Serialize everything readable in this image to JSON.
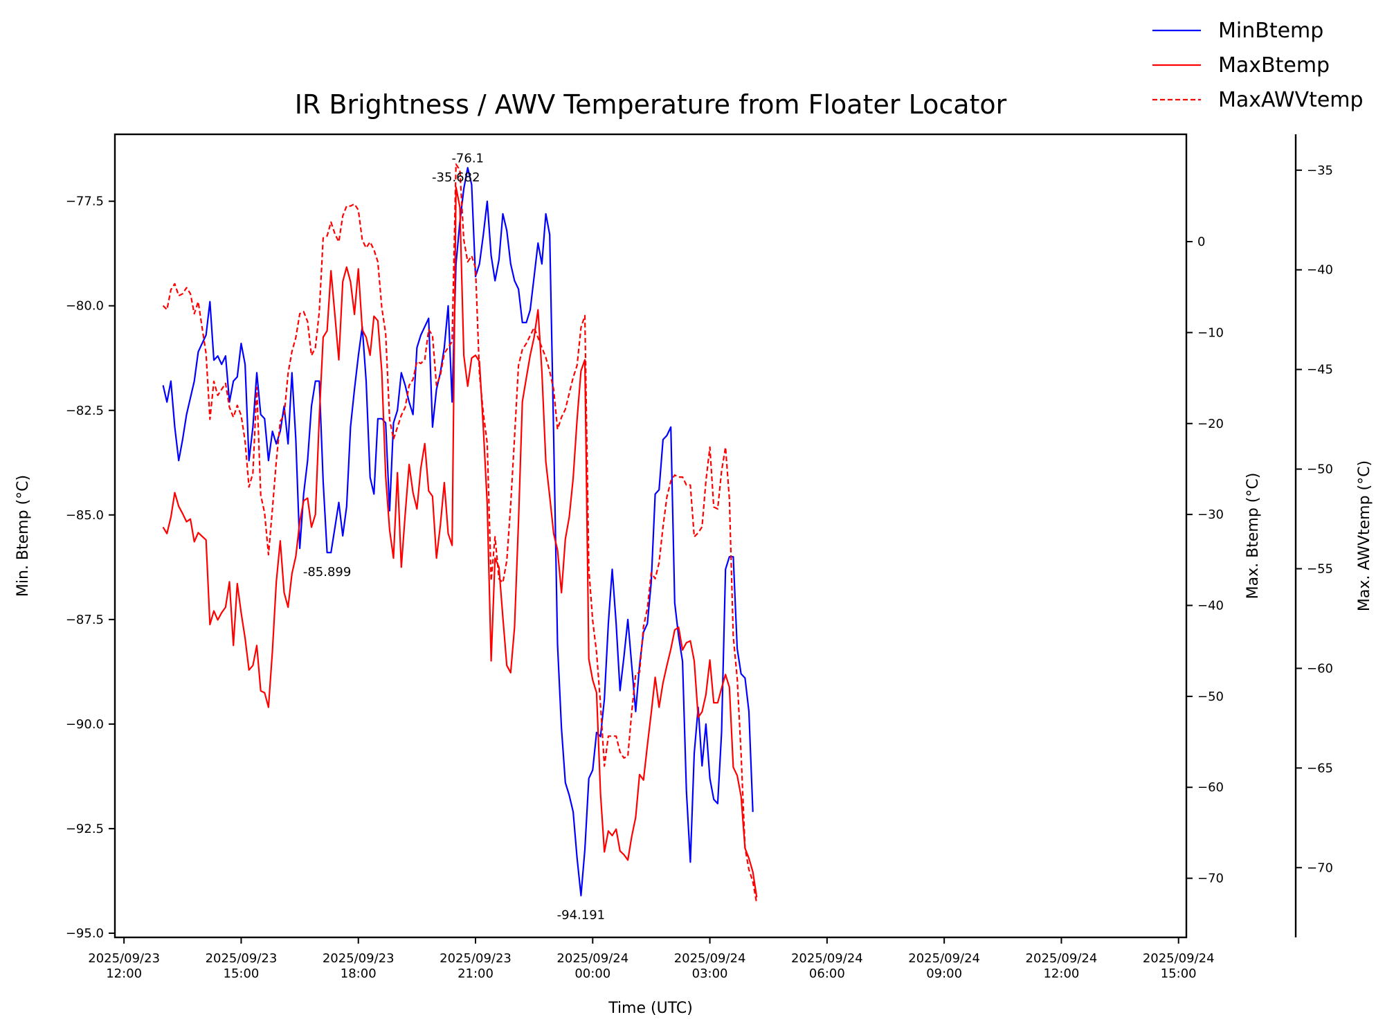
{
  "chart_data": {
    "type": "line",
    "title": "IR Brightness / AWV Temperature from Floater Locator",
    "xlabel": "Time (UTC)",
    "x_start": "2025-09-23 13:00",
    "x_step_minutes": 6,
    "x_ticks": [
      {
        "t": 0,
        "line1": "2025/09/23",
        "line2": "12:00"
      },
      {
        "t": 180,
        "line1": "2025/09/23",
        "line2": "15:00"
      },
      {
        "t": 360,
        "line1": "2025/09/23",
        "line2": "18:00"
      },
      {
        "t": 540,
        "line1": "2025/09/23",
        "line2": "21:00"
      },
      {
        "t": 720,
        "line1": "2025/09/24",
        "line2": "00:00"
      },
      {
        "t": 900,
        "line1": "2025/09/24",
        "line2": "03:00"
      },
      {
        "t": 1080,
        "line1": "2025/09/24",
        "line2": "06:00"
      },
      {
        "t": 1260,
        "line1": "2025/09/24",
        "line2": "09:00"
      },
      {
        "t": 1440,
        "line1": "2025/09/24",
        "line2": "12:00"
      },
      {
        "t": 1620,
        "line1": "2025/09/24",
        "line2": "15:00"
      }
    ],
    "axes": [
      {
        "id": "min",
        "label": "Min. Btemp (°C)",
        "side": "left",
        "ylim": [
          -95.1,
          -75.9
        ],
        "ticks": [
          "−95.0",
          "−92.5",
          "−90.0",
          "−87.5",
          "−85.0",
          "−82.5",
          "−80.0",
          "−77.5"
        ],
        "tick_values": [
          -95,
          -92.5,
          -90,
          -87.5,
          -85,
          -82.5,
          -80,
          -77.5
        ]
      },
      {
        "id": "max",
        "label": "Max. Btemp (°C)",
        "side": "right",
        "ylim": [
          -76.5,
          11.8
        ],
        "ticks": [
          "−70",
          "−60",
          "−50",
          "−40",
          "−30",
          "−20",
          "−10",
          "0"
        ],
        "tick_values": [
          -70,
          -60,
          -50,
          -40,
          -30,
          -20,
          -10,
          0
        ]
      },
      {
        "id": "awv",
        "label": "Max. AWVtemp (°C)",
        "side": "right-offset",
        "ylim": [
          -73.5,
          -33.2
        ],
        "ticks": [
          "−70",
          "−65",
          "−60",
          "−55",
          "−50",
          "−45",
          "−40",
          "−35"
        ],
        "tick_values": [
          -70,
          -65,
          -60,
          -55,
          -50,
          -45,
          -40,
          -35
        ]
      }
    ],
    "series": [
      {
        "name": "MinBtemp",
        "axis": "min",
        "color": "#0000ff",
        "style": "solid",
        "values": [
          -81.9,
          -82.3,
          -81.8,
          -82.9,
          -83.7,
          -83.2,
          -82.6,
          -82.2,
          -81.8,
          -81.1,
          -80.9,
          -80.7,
          -79.9,
          -81.3,
          -81.2,
          -81.4,
          -81.2,
          -82.3,
          -81.8,
          -81.7,
          -80.9,
          -81.4,
          -83.7,
          -82.9,
          -81.6,
          -82.6,
          -82.7,
          -83.7,
          -83.0,
          -83.3,
          -83.0,
          -82.4,
          -83.3,
          -81.6,
          -83.2,
          -85.8,
          -84.5,
          -83.7,
          -82.4,
          -81.8,
          -81.8,
          -84.2,
          -85.9,
          -85.9,
          -85.3,
          -84.7,
          -85.5,
          -84.8,
          -82.9,
          -82.0,
          -81.2,
          -80.5,
          -81.8,
          -84.1,
          -84.5,
          -82.7,
          -82.7,
          -82.8,
          -84.9,
          -82.8,
          -82.5,
          -81.6,
          -81.9,
          -82.3,
          -82.6,
          -81.0,
          -80.7,
          -80.5,
          -80.3,
          -82.9,
          -82.0,
          -81.6,
          -81.0,
          -80.0,
          -82.3,
          -79.0,
          -78.0,
          -77.2,
          -76.7,
          -77.1,
          -79.3,
          -79.0,
          -78.3,
          -77.5,
          -78.8,
          -79.4,
          -78.9,
          -77.8,
          -78.2,
          -79.0,
          -79.4,
          -79.6,
          -80.4,
          -80.4,
          -80.1,
          -79.3,
          -78.5,
          -79.0,
          -77.8,
          -78.3,
          -83.1,
          -88.1,
          -90.1,
          -91.4,
          -91.7,
          -92.1,
          -93.2,
          -94.1,
          -93.0,
          -91.3,
          -91.1,
          -90.2,
          -90.3,
          -89.4,
          -87.6,
          -86.3,
          -87.6,
          -89.2,
          -88.4,
          -87.5,
          -88.6,
          -89.7,
          -88.6,
          -87.8,
          -87.6,
          -86.6,
          -84.5,
          -84.4,
          -83.2,
          -83.1,
          -82.9,
          -87.1,
          -87.9,
          -88.5,
          -91.6,
          -93.3,
          -90.7,
          -89.6,
          -91.0,
          -90.0,
          -91.3,
          -91.8,
          -91.9,
          -90.2,
          -86.3,
          -86.0,
          -86.0,
          -88.2,
          -88.8,
          -88.9,
          -89.7,
          -92.1
        ]
      },
      {
        "name": "MaxBtemp",
        "axis": "max",
        "color": "#ff0000",
        "style": "solid",
        "values": [
          -31.4,
          -32.1,
          -30.3,
          -27.6,
          -29.1,
          -29.9,
          -30.8,
          -30.5,
          -33.0,
          -32.0,
          -32.4,
          -32.8,
          -42.1,
          -40.6,
          -41.6,
          -40.8,
          -40.2,
          -37.4,
          -44.4,
          -37.6,
          -40.8,
          -43.6,
          -47.1,
          -46.6,
          -44.4,
          -49.4,
          -49.6,
          -51.2,
          -45.0,
          -37.4,
          -32.9,
          -38.6,
          -40.2,
          -36.5,
          -34.6,
          -30.8,
          -28.5,
          -28.2,
          -31.4,
          -30.0,
          -19.3,
          -10.5,
          -9.8,
          -3.2,
          -8.1,
          -13.0,
          -4.4,
          -2.8,
          -4.4,
          -8.0,
          -3.0,
          -9.7,
          -10.5,
          -12.5,
          -8.2,
          -8.7,
          -14.3,
          -25.8,
          -31.7,
          -34.8,
          -25.4,
          -35.8,
          -30.0,
          -24.5,
          -27.6,
          -29.4,
          -24.9,
          -22.2,
          -27.4,
          -28.0,
          -34.8,
          -31.2,
          -26.5,
          -32.1,
          -33.4,
          6.0,
          3.8,
          -12.5,
          -15.9,
          -12.8,
          -12.5,
          -13.2,
          -20.5,
          -28.8,
          -46.1,
          -34.8,
          -35.8,
          -41.3,
          -46.6,
          -47.4,
          -42.4,
          -30.8,
          -17.6,
          -15.0,
          -12.5,
          -10.5,
          -7.5,
          -14.3,
          -24.2,
          -28.0,
          -32.1,
          -33.9,
          -38.6,
          -32.7,
          -30.3,
          -26.0,
          -19.6,
          -14.2,
          -13.0,
          -45.9,
          -48.2,
          -49.6,
          -60.7,
          -67.1,
          -64.8,
          -65.3,
          -64.6,
          -67.0,
          -67.4,
          -68.0,
          -65.4,
          -63.3,
          -58.6,
          -59.2,
          -55.4,
          -51.8,
          -47.9,
          -51.2,
          -48.5,
          -46.6,
          -44.8,
          -42.7,
          -42.4,
          -44.9,
          -44.1,
          -43.9,
          -46.1,
          -52.3,
          -51.7,
          -49.8,
          -46.0,
          -50.7,
          -50.7,
          -49.1,
          -47.6,
          -49.0,
          -57.8,
          -58.7,
          -61.0,
          -66.7,
          -67.8,
          -69.3,
          -72.1
        ]
      },
      {
        "name": "MaxAWVtemp",
        "axis": "awv",
        "color": "#ff0000",
        "style": "dashed",
        "values": [
          -41.8,
          -42.0,
          -41.0,
          -40.7,
          -41.3,
          -41.2,
          -40.9,
          -41.2,
          -42.2,
          -41.6,
          -42.9,
          -44.2,
          -47.5,
          -45.6,
          -46.3,
          -46.0,
          -45.7,
          -46.9,
          -47.4,
          -46.8,
          -47.3,
          -48.6,
          -50.9,
          -50.2,
          -45.9,
          -51.3,
          -52.2,
          -54.3,
          -52.0,
          -49.6,
          -47.6,
          -47.3,
          -45.2,
          -44.1,
          -43.4,
          -42.2,
          -42.1,
          -42.6,
          -44.3,
          -43.9,
          -42.1,
          -38.4,
          -38.3,
          -37.6,
          -38.2,
          -38.6,
          -37.3,
          -36.8,
          -36.8,
          -36.7,
          -37.0,
          -38.5,
          -38.9,
          -38.6,
          -39.0,
          -39.6,
          -41.9,
          -43.2,
          -47.5,
          -48.5,
          -47.9,
          -47.3,
          -46.9,
          -45.8,
          -45.5,
          -44.6,
          -44.7,
          -44.5,
          -43.0,
          -43.3,
          -45.8,
          -45.3,
          -44.2,
          -43.9,
          -43.6,
          -34.7,
          -35.0,
          -38.5,
          -39.6,
          -39.3,
          -39.9,
          -45.2,
          -47.2,
          -48.7,
          -55.6,
          -53.4,
          -55.5,
          -55.7,
          -54.6,
          -51.8,
          -48.4,
          -44.8,
          -44.0,
          -43.7,
          -43.3,
          -42.9,
          -43.4,
          -43.9,
          -44.4,
          -45.1,
          -46.0,
          -48.0,
          -47.4,
          -47.0,
          -46.2,
          -45.4,
          -44.8,
          -42.9,
          -42.3,
          -55.0,
          -57.6,
          -59.2,
          -61.8,
          -64.9,
          -63.4,
          -63.4,
          -63.4,
          -64.2,
          -64.5,
          -64.4,
          -62.2,
          -60.3,
          -60.2,
          -57.9,
          -57.0,
          -55.2,
          -55.5,
          -54.7,
          -52.9,
          -51.4,
          -50.6,
          -50.3,
          -50.4,
          -50.4,
          -50.8,
          -50.8,
          -53.4,
          -53.2,
          -52.9,
          -50.6,
          -48.9,
          -51.9,
          -52.0,
          -50.1,
          -48.9,
          -51.5,
          -58.4,
          -60.5,
          -64.3,
          -69.0,
          -70.1,
          -70.7,
          -71.8
        ]
      }
    ],
    "annotations": [
      {
        "text": "-85.899"
      },
      {
        "text": "-94.191"
      },
      {
        "text": "-35.682"
      },
      {
        "text": "-76.1"
      }
    ],
    "legend": {
      "placement": "top-right",
      "entries": [
        "MinBtemp",
        "MaxBtemp",
        "MaxAWVtemp"
      ]
    },
    "grid": false
  }
}
